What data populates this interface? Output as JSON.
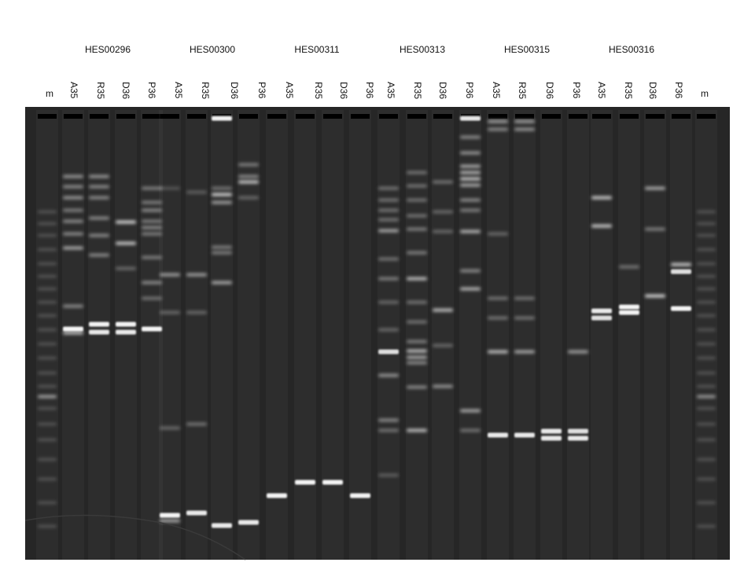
{
  "groups": [
    {
      "label": "HES00296"
    },
    {
      "label": "HES00300"
    },
    {
      "label": "HES00311"
    },
    {
      "label": "HES00313"
    },
    {
      "label": "HES00315"
    },
    {
      "label": "HES00316"
    }
  ],
  "lanes": [
    "m",
    "A35",
    "R35",
    "D36",
    "P36",
    "A35",
    "R35",
    "D36",
    "P36",
    "A35",
    "R35",
    "D36",
    "P36",
    "A35",
    "R35",
    "D36",
    "P36",
    "A35",
    "R35",
    "D36",
    "P36",
    "A35",
    "R35",
    "D36",
    "P36",
    "m"
  ],
  "gel": {
    "background": "#262626",
    "band_color": "#ffffff"
  }
}
